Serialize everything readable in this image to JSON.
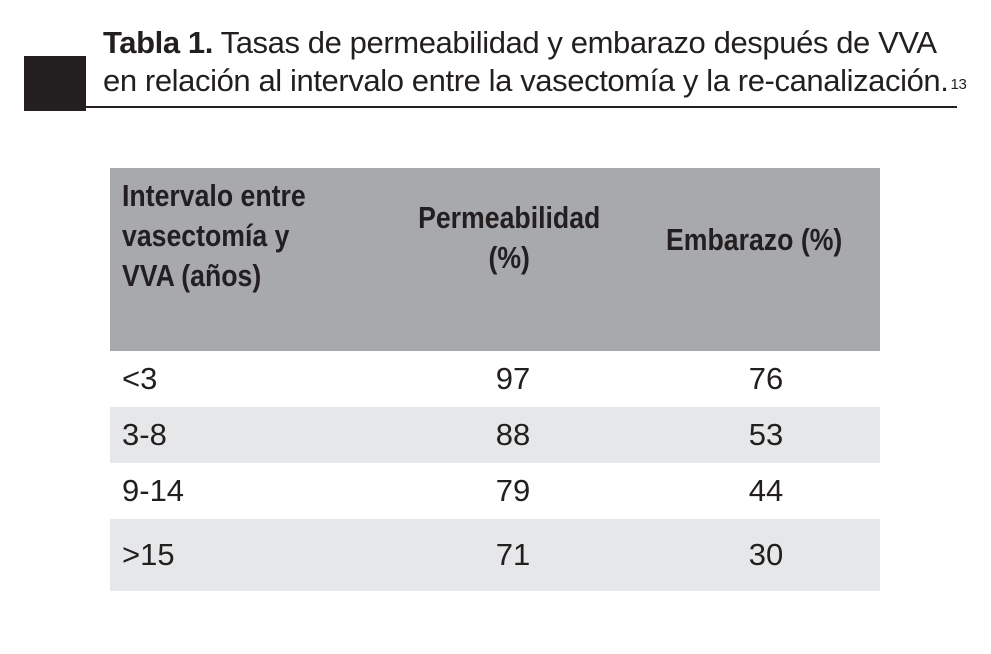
{
  "caption": {
    "label": "Tabla 1.",
    "text_line1": "Tasas de permeabilidad y embarazo después de VVA",
    "text_line2": "en relación al intervalo entre la vasectomía y la re-canalización.",
    "reference": "13"
  },
  "table": {
    "headers": {
      "interval_line1": "Intervalo entre",
      "interval_line2": "vasectomía y",
      "interval_line3": "VVA (años)",
      "permeability_line1": "Permeabilidad",
      "permeability_line2": "(%)",
      "pregnancy": "Embarazo (%)"
    },
    "rows": [
      {
        "interval": "<3",
        "permeability": "97",
        "pregnancy": "76"
      },
      {
        "interval": "3-8",
        "permeability": "88",
        "pregnancy": "53"
      },
      {
        "interval": "9-14",
        "permeability": "79",
        "pregnancy": "44"
      },
      {
        "interval": ">15",
        "permeability": "71",
        "pregnancy": "30"
      }
    ]
  },
  "colors": {
    "header_background": "#a7a9ac",
    "shaded_row": "#e6e7e8",
    "text": "#231f20"
  }
}
